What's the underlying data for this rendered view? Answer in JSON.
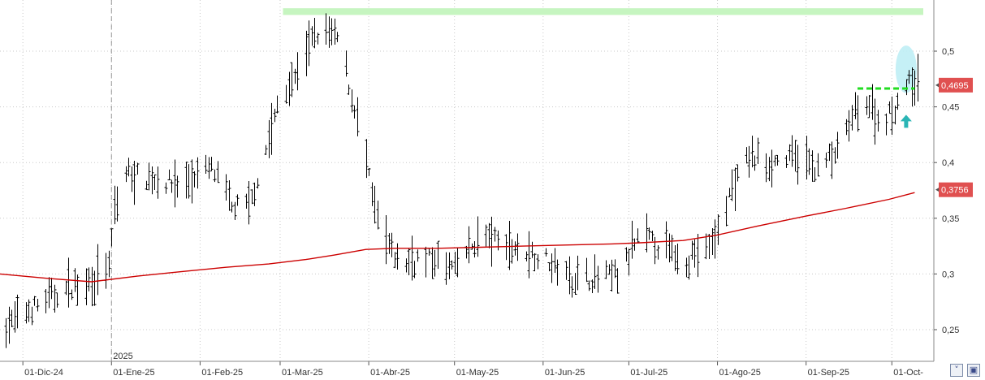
{
  "chart_data": {
    "type": "ohlc",
    "title": "",
    "ylabel": "",
    "xlabel": "",
    "ylim": [
      0.225,
      0.55
    ],
    "y_ticks": [
      0.25,
      0.3,
      0.35,
      0.4,
      0.45,
      0.5
    ],
    "y_tick_labels": [
      "0,25",
      "0,3",
      "0,35",
      "0,4",
      "0,45",
      "0,5"
    ],
    "x_tick_labels": [
      "01-Dic-24",
      "01-Ene-25",
      "01-Feb-25",
      "01-Mar-25",
      "01-Abr-25",
      "01-May-25",
      "01-Jun-25",
      "01-Jul-25",
      "01-Ago-25",
      "01-Sep-25",
      "01-Oct-"
    ],
    "x_tick_dates": [
      "2024-12-01",
      "2025-01-01",
      "2025-02-01",
      "2025-03-01",
      "2025-04-01",
      "2025-05-01",
      "2025-06-01",
      "2025-07-01",
      "2025-08-01",
      "2025-09-01",
      "2025-10-01"
    ],
    "year_marker": {
      "label": "2025",
      "date": "2025-01-01"
    },
    "x_range": [
      "2024-11-23",
      "2025-10-12"
    ],
    "grid": true,
    "colors": {
      "bars": "#000000",
      "moving_average": "#cc0000",
      "price_tag": "#e05050",
      "resistance_zone": "#c6f5c0",
      "breakout_line": "#22dd22",
      "highlight": "#bfeef5",
      "arrow": "#2ab5b5"
    },
    "last_price": {
      "value": 0.4695,
      "label": "0,4695"
    },
    "moving_average_last": {
      "value": 0.3756,
      "label": "0,3756"
    },
    "resistance_zone": {
      "start": "2025-03-02",
      "end": "2025-10-12",
      "low": 0.5325,
      "high": 0.5385
    },
    "breakout_line": {
      "start": "2025-09-19",
      "end": "2025-10-09",
      "value": 0.4665
    },
    "highlight_ellipse": {
      "date": "2025-10-06",
      "low": 0.4625,
      "high": 0.505
    },
    "up_arrow": {
      "date": "2025-10-06",
      "value": 0.437
    },
    "moving_average": {
      "dates": [
        "2024-11-23",
        "2024-12-10",
        "2024-12-25",
        "2025-01-10",
        "2025-01-25",
        "2025-02-10",
        "2025-02-25",
        "2025-03-10",
        "2025-03-20",
        "2025-03-31",
        "2025-04-10",
        "2025-04-25",
        "2025-05-10",
        "2025-05-25",
        "2025-06-10",
        "2025-06-25",
        "2025-07-05",
        "2025-07-20",
        "2025-08-01",
        "2025-08-15",
        "2025-09-01",
        "2025-09-15",
        "2025-09-30",
        "2025-10-09"
      ],
      "values": [
        0.3,
        0.296,
        0.293,
        0.298,
        0.302,
        0.306,
        0.309,
        0.313,
        0.317,
        0.322,
        0.323,
        0.323,
        0.324,
        0.325,
        0.326,
        0.327,
        0.328,
        0.33,
        0.335,
        0.343,
        0.352,
        0.359,
        0.367,
        0.373
      ]
    },
    "anchors": [
      {
        "date": "2024-11-23",
        "value": 0.25
      },
      {
        "date": "2024-12-05",
        "value": 0.27
      },
      {
        "date": "2024-12-15",
        "value": 0.285
      },
      {
        "date": "2024-12-25",
        "value": 0.295
      },
      {
        "date": "2024-12-31",
        "value": 0.305
      },
      {
        "date": "2025-01-02",
        "value": 0.355
      },
      {
        "date": "2025-01-06",
        "value": 0.39
      },
      {
        "date": "2025-01-15",
        "value": 0.385
      },
      {
        "date": "2025-01-25",
        "value": 0.38
      },
      {
        "date": "2025-02-05",
        "value": 0.395
      },
      {
        "date": "2025-02-12",
        "value": 0.36
      },
      {
        "date": "2025-02-18",
        "value": 0.36
      },
      {
        "date": "2025-02-25",
        "value": 0.42
      },
      {
        "date": "2025-03-01",
        "value": 0.46
      },
      {
        "date": "2025-03-05",
        "value": 0.47
      },
      {
        "date": "2025-03-10",
        "value": 0.5
      },
      {
        "date": "2025-03-15",
        "value": 0.52
      },
      {
        "date": "2025-03-22",
        "value": 0.51
      },
      {
        "date": "2025-03-25",
        "value": 0.47
      },
      {
        "date": "2025-03-29",
        "value": 0.43
      },
      {
        "date": "2025-04-02",
        "value": 0.37
      },
      {
        "date": "2025-04-06",
        "value": 0.33
      },
      {
        "date": "2025-04-12",
        "value": 0.31
      },
      {
        "date": "2025-04-20",
        "value": 0.315
      },
      {
        "date": "2025-05-01",
        "value": 0.305
      },
      {
        "date": "2025-05-10",
        "value": 0.335
      },
      {
        "date": "2025-05-20",
        "value": 0.325
      },
      {
        "date": "2025-06-01",
        "value": 0.315
      },
      {
        "date": "2025-06-10",
        "value": 0.298
      },
      {
        "date": "2025-06-20",
        "value": 0.296
      },
      {
        "date": "2025-06-28",
        "value": 0.3
      },
      {
        "date": "2025-07-05",
        "value": 0.335
      },
      {
        "date": "2025-07-12",
        "value": 0.325
      },
      {
        "date": "2025-07-20",
        "value": 0.313
      },
      {
        "date": "2025-07-30",
        "value": 0.325
      },
      {
        "date": "2025-08-05",
        "value": 0.37
      },
      {
        "date": "2025-08-12",
        "value": 0.405
      },
      {
        "date": "2025-08-18",
        "value": 0.4
      },
      {
        "date": "2025-08-28",
        "value": 0.405
      },
      {
        "date": "2025-09-05",
        "value": 0.395
      },
      {
        "date": "2025-09-12",
        "value": 0.41
      },
      {
        "date": "2025-09-18",
        "value": 0.445
      },
      {
        "date": "2025-09-22",
        "value": 0.455
      },
      {
        "date": "2025-09-27",
        "value": 0.435
      },
      {
        "date": "2025-10-02",
        "value": 0.45
      },
      {
        "date": "2025-10-06",
        "value": 0.47
      },
      {
        "date": "2025-10-09",
        "value": 0.47
      }
    ]
  },
  "controls": {
    "scroll_icon": "chevron-down-icon",
    "save_icon": "save-icon"
  }
}
